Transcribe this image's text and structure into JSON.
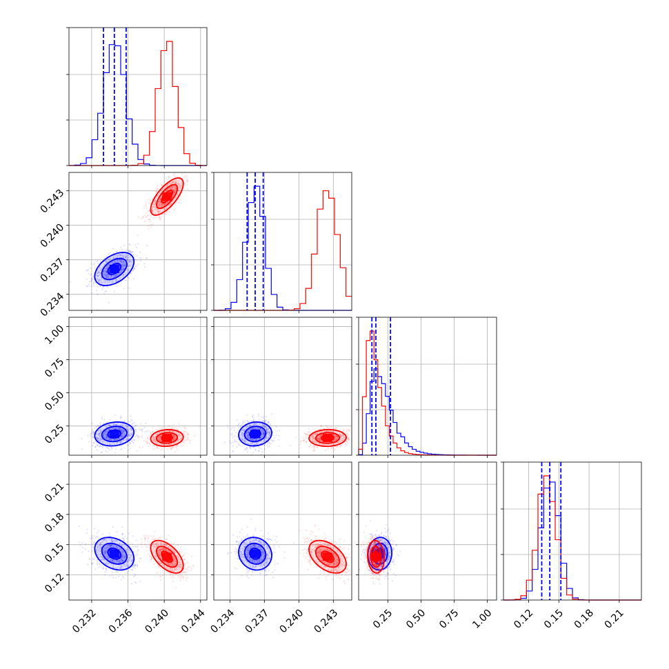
{
  "chart_data": {
    "type": "corner",
    "grid": true,
    "parameters": 4,
    "series": [
      {
        "name": "",
        "color": "#0000ff",
        "means": [
          0.2345,
          0.2362,
          0.19,
          0.141
        ],
        "sds": [
          0.0012,
          0.0008,
          0.05,
          0.009
        ],
        "corr": [
          [
            1,
            0.45,
            0.15,
            -0.3
          ],
          [
            0.45,
            1,
            0.1,
            -0.1
          ],
          [
            0.15,
            0.1,
            1,
            0.05
          ],
          [
            -0.3,
            -0.1,
            0.05,
            1
          ]
        ],
        "quantiles": [
          [
            0.2333,
            0.2345,
            0.2358
          ],
          [
            0.2355,
            0.2362,
            0.2369
          ],
          [
            0.13,
            0.16,
            0.27
          ],
          [
            0.133,
            0.141,
            0.152
          ]
        ],
        "hist_peaks": [
          0.235,
          0.2365,
          0.18,
          0.14
        ]
      },
      {
        "name": "",
        "color": "#ff0000",
        "means": [
          0.2403,
          0.2425,
          0.16,
          0.138
        ],
        "sds": [
          0.001,
          0.0009,
          0.035,
          0.009
        ],
        "corr": [
          [
            1,
            0.7,
            0.1,
            -0.55
          ],
          [
            0.7,
            1,
            0.05,
            -0.45
          ],
          [
            0.1,
            0.05,
            1,
            -0.1
          ],
          [
            -0.55,
            -0.45,
            -0.1,
            1
          ]
        ],
        "quantiles": [],
        "hist_peaks": [
          0.24,
          0.2428,
          0.13,
          0.14
        ]
      }
    ],
    "axes": [
      {
        "range": [
          0.2295,
          0.2447
        ],
        "ticks": [
          0.232,
          0.236,
          0.24,
          0.244
        ],
        "tick_labels": [
          "0.232",
          "0.236",
          "0.240",
          "0.244"
        ]
      },
      {
        "range": [
          0.2326,
          0.2446
        ],
        "ticks": [
          0.234,
          0.237,
          0.24,
          0.243
        ],
        "tick_labels": [
          "0.234",
          "0.237",
          "0.240",
          "0.243"
        ]
      },
      {
        "range": [
          0.03,
          1.07
        ],
        "ticks": [
          0.25,
          0.5,
          0.75,
          1.0
        ],
        "tick_labels": [
          "0.25",
          "0.50",
          "0.75",
          "1.00"
        ]
      },
      {
        "range": [
          0.095,
          0.232
        ],
        "ticks": [
          0.12,
          0.15,
          0.18,
          0.21
        ],
        "tick_labels": [
          "0.12",
          "0.15",
          "0.18",
          "0.21"
        ]
      }
    ]
  }
}
